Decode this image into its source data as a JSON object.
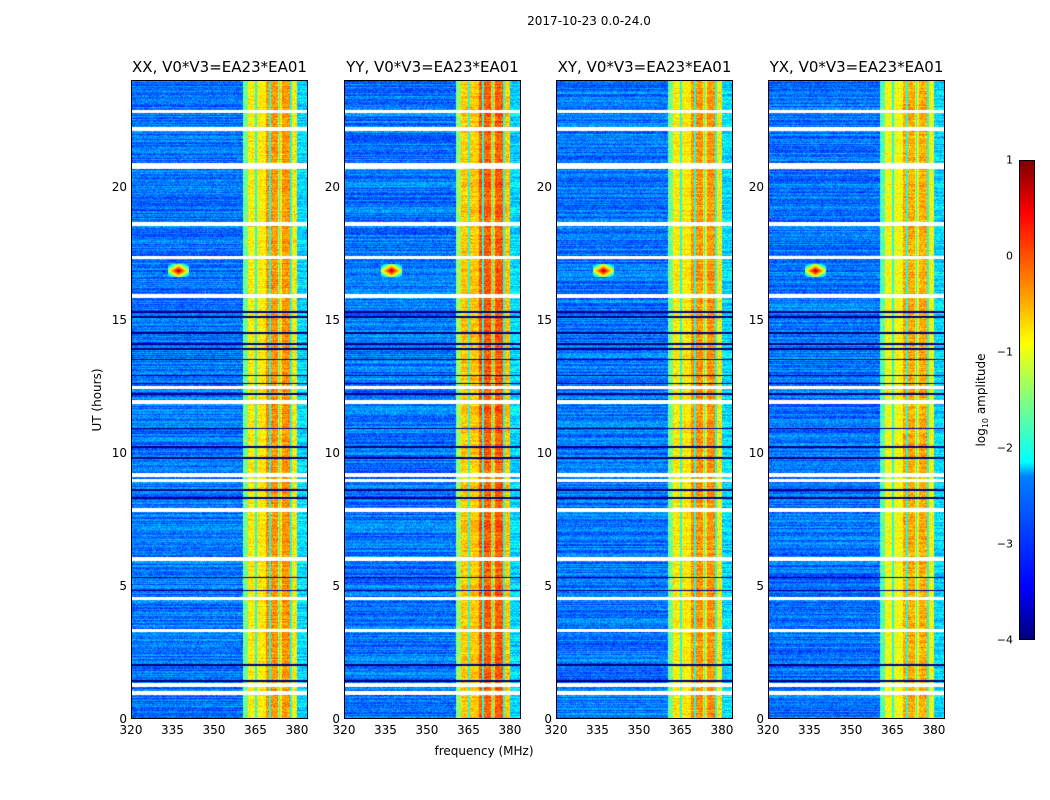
{
  "suptitle": "2017-10-23 0.0-24.0",
  "xlabel": "frequency (MHz)",
  "ylabel": "UT (hours)",
  "colorbar": {
    "label_prefix": "log",
    "label_sub": "10",
    "label_suffix": " amplitude",
    "range": [
      -4,
      1
    ],
    "ticks": [
      1,
      0,
      -1,
      -2,
      -3,
      -4
    ],
    "tick_labels": [
      "1",
      "0",
      "−1",
      "−2",
      "−3",
      "−4"
    ],
    "colormap": "jet"
  },
  "chart_data": [
    {
      "type": "heatmap",
      "title": "XX, V0*V3=EA23*EA01",
      "band_level": -0.8,
      "band_hot": -0.3
    },
    {
      "type": "heatmap",
      "title": "YY, V0*V3=EA23*EA01",
      "band_level": -0.6,
      "band_hot": 0.0
    },
    {
      "type": "heatmap",
      "title": "XY, V0*V3=EA23*EA01",
      "band_level": -0.8,
      "band_hot": -0.3
    },
    {
      "type": "heatmap",
      "title": "YX, V0*V3=EA23*EA01",
      "band_level": -0.9,
      "band_hot": -0.4
    }
  ],
  "shared": {
    "xlim": [
      320,
      384
    ],
    "ylim": [
      0,
      24
    ],
    "xticks": [
      320,
      335,
      350,
      365,
      380
    ],
    "xtick_labels": [
      "320",
      "335",
      "350",
      "365",
      "380"
    ],
    "yticks": [
      0,
      5,
      10,
      15,
      20
    ],
    "ytick_labels": [
      "0",
      "5",
      "10",
      "15",
      "20"
    ],
    "background_level": -2.8,
    "band_mhz": [
      360.5,
      380.5
    ],
    "band_gaps_mhz": [
      365.3,
      370.5,
      374.0,
      378.2
    ],
    "flagged_white_hours": [
      0.95,
      1.25,
      3.3,
      4.5,
      6.0,
      7.85,
      8.95,
      9.15,
      11.9,
      12.45,
      15.9,
      17.35,
      18.6,
      20.75,
      20.85,
      22.2,
      22.85
    ],
    "flagged_black_hours": [
      1.4,
      2.0,
      4.8,
      5.3,
      8.3,
      8.6,
      9.8,
      10.2,
      10.9,
      12.2,
      12.6,
      12.9,
      13.5,
      13.9,
      14.1,
      14.5,
      15.1,
      15.3
    ],
    "rfi_spike": {
      "mhz": 337,
      "hour": 16.85,
      "level": 0.8
    }
  }
}
